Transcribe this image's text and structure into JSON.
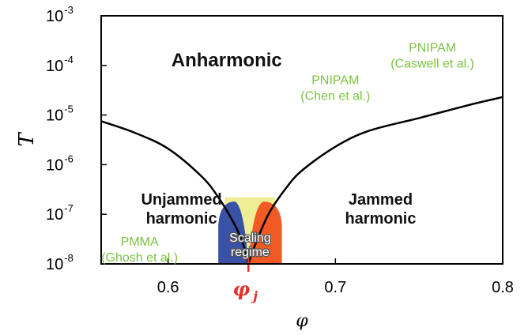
{
  "chart_data": {
    "type": "area",
    "title": "",
    "xlabel": "φ",
    "ylabel": "T",
    "xlim": [
      0.56,
      0.8
    ],
    "ylim": [
      1e-08,
      0.001
    ],
    "y_scale": "log",
    "x_ticks": [
      "0.6",
      "0.7",
      "0.8"
    ],
    "x_tick_values": [
      0.6,
      0.7,
      0.8
    ],
    "y_ticks": [
      {
        "base": "10",
        "exp": "-3",
        "value": 0.001
      },
      {
        "base": "10",
        "exp": "-4",
        "value": 0.0001
      },
      {
        "base": "10",
        "exp": "-5",
        "value": 1e-05
      },
      {
        "base": "10",
        "exp": "-6",
        "value": 1e-06
      },
      {
        "base": "10",
        "exp": "-7",
        "value": 1e-07
      },
      {
        "base": "10",
        "exp": "-8",
        "value": 1e-08
      }
    ],
    "boundary_left": [
      [
        0.56,
        7.5e-06
      ],
      [
        0.58,
        4.4e-06
      ],
      [
        0.6,
        2.1e-06
      ],
      [
        0.62,
        5.8e-07
      ],
      [
        0.63,
        2.2e-07
      ],
      [
        0.64,
        6e-08
      ],
      [
        0.645,
        2.4e-08
      ],
      [
        0.648,
        1e-08
      ]
    ],
    "boundary_right": [
      [
        0.648,
        1e-08
      ],
      [
        0.652,
        2.4e-08
      ],
      [
        0.66,
        1e-07
      ],
      [
        0.67,
        3.2e-07
      ],
      [
        0.68,
        7.6e-07
      ],
      [
        0.7,
        2.3e-06
      ],
      [
        0.72,
        4.8e-06
      ],
      [
        0.75,
        8.7e-06
      ],
      [
        0.78,
        1.6e-05
      ],
      [
        0.8,
        2.3e-05
      ]
    ],
    "scaling_regime": {
      "xlim": [
        0.634,
        0.664
      ],
      "ytop": 2.2e-07,
      "color": "#efee94"
    },
    "left_lobe": {
      "x_outer": 0.63,
      "x_inner": 0.648,
      "ytop": 1.8e-07,
      "color": "#3952a5"
    },
    "right_lobe": {
      "x_inner": 0.648,
      "x_outer": 0.668,
      "ytop": 1.8e-07,
      "color": "#f15a24"
    },
    "phi_j": {
      "value": 0.648,
      "label_main": "φ",
      "label_sub": "j",
      "color": "#e8302a"
    },
    "region_labels": [
      {
        "id": "anharmonic",
        "lines": [
          "Anharmonic"
        ],
        "x": 0.635,
        "y": 9.5e-05,
        "size": "big"
      },
      {
        "id": "unjammed",
        "lines": [
          "Unjammed",
          "harmonic"
        ],
        "x": 0.608,
        "y": 1e-07,
        "size": "normal"
      },
      {
        "id": "jammed",
        "lines": [
          "Jammed",
          "harmonic"
        ],
        "x": 0.727,
        "y": 1e-07,
        "size": "normal"
      },
      {
        "id": "scaling",
        "lines": [
          "Scaling",
          "regime"
        ],
        "x": 0.649,
        "y": 2e-08,
        "size": "scaling"
      }
    ],
    "references": [
      {
        "id": "caswell",
        "lines": [
          "PNIPAM",
          "(Caswell et al.)"
        ],
        "x": 0.758,
        "y": 0.00013
      },
      {
        "id": "chen",
        "lines": [
          "PNIPAM",
          "(Chen et al.)"
        ],
        "x": 0.7,
        "y": 2.9e-05
      },
      {
        "id": "ghosh",
        "lines": [
          "PMMA",
          "(Ghosh et al.)"
        ],
        "x": 0.583,
        "y": 1.6e-08
      }
    ]
  }
}
